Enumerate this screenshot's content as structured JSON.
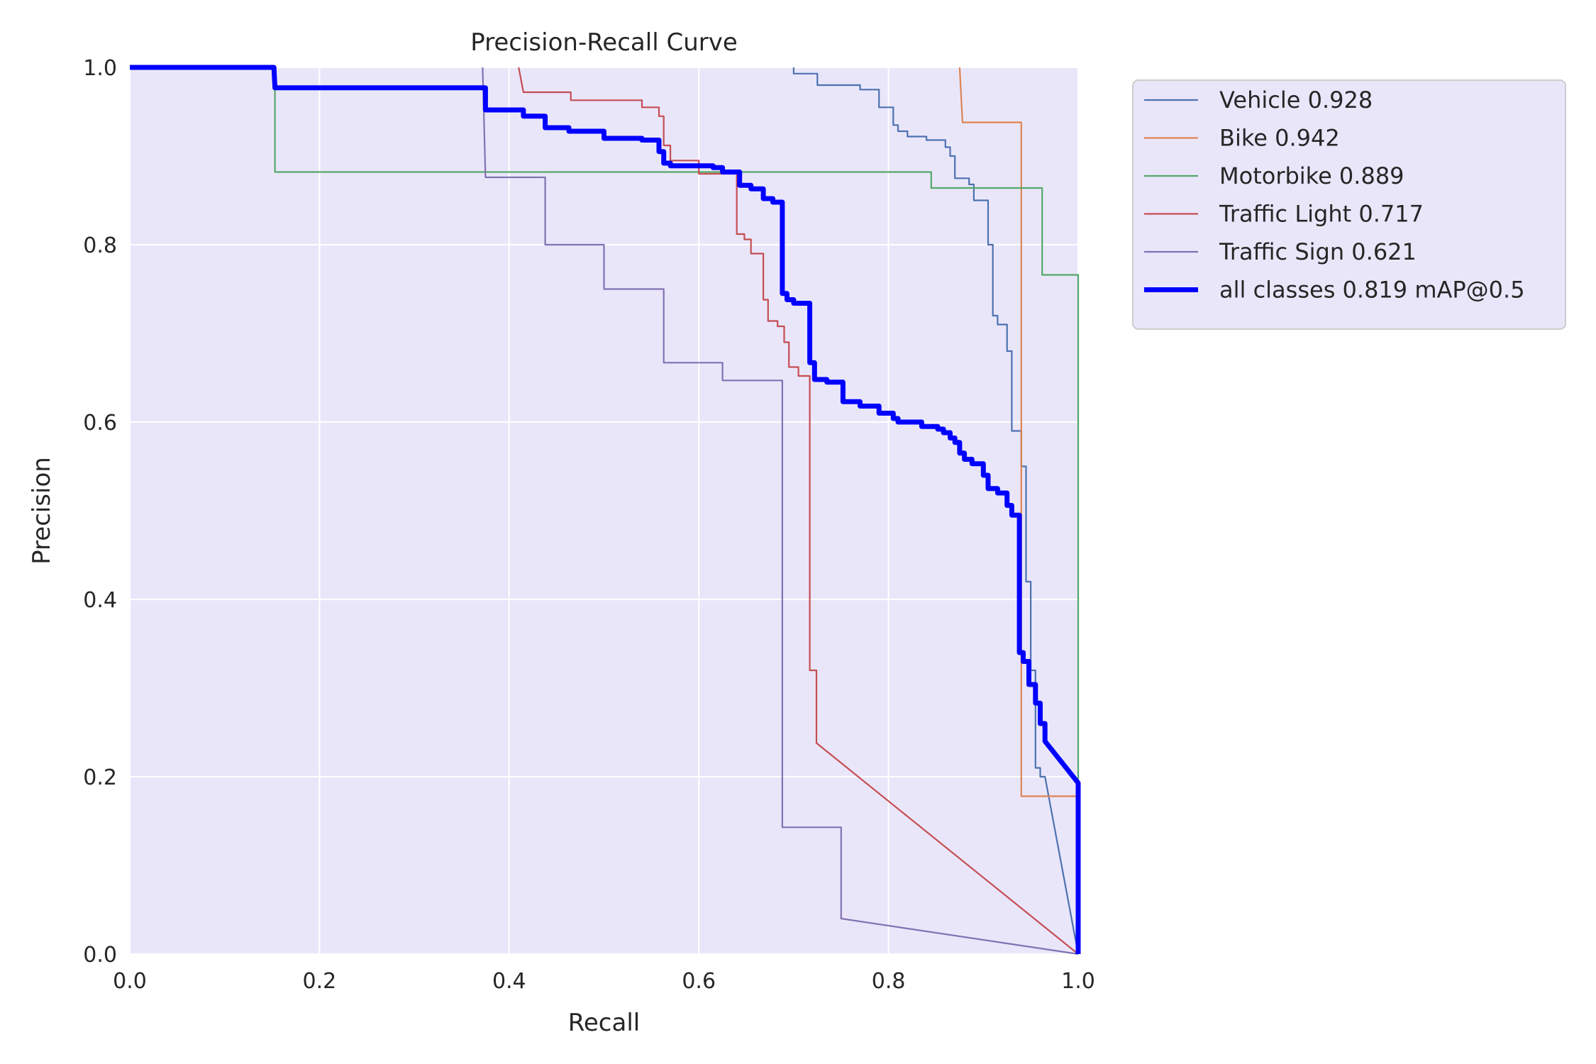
{
  "chart_data": {
    "type": "line",
    "title": "Precision-Recall Curve",
    "xlabel": "Recall",
    "ylabel": "Precision",
    "xlim": [
      0,
      1
    ],
    "ylim": [
      0,
      1
    ],
    "grid": true,
    "legend_position": "outside-top-right",
    "x_ticks": [
      0,
      0.2,
      0.4,
      0.6,
      0.8,
      1.0
    ],
    "y_ticks": [
      0,
      0.2,
      0.4,
      0.6,
      0.8,
      1.0
    ],
    "x_tick_labels": [
      "0.0",
      "0.2",
      "0.4",
      "0.6",
      "0.8",
      "1.0"
    ],
    "y_tick_labels": [
      "0.0",
      "0.2",
      "0.4",
      "0.6",
      "0.8",
      "1.0"
    ],
    "series": [
      {
        "name": "Vehicle 0.928",
        "color": "#4c72b0",
        "points": [
          [
            0.7,
            1.0
          ],
          [
            0.7,
            0.993
          ],
          [
            0.725,
            0.993
          ],
          [
            0.725,
            0.98
          ],
          [
            0.77,
            0.98
          ],
          [
            0.77,
            0.975
          ],
          [
            0.79,
            0.975
          ],
          [
            0.79,
            0.955
          ],
          [
            0.805,
            0.955
          ],
          [
            0.805,
            0.935
          ],
          [
            0.81,
            0.935
          ],
          [
            0.81,
            0.928
          ],
          [
            0.82,
            0.928
          ],
          [
            0.82,
            0.922
          ],
          [
            0.84,
            0.922
          ],
          [
            0.84,
            0.918
          ],
          [
            0.86,
            0.918
          ],
          [
            0.86,
            0.91
          ],
          [
            0.865,
            0.91
          ],
          [
            0.865,
            0.9
          ],
          [
            0.87,
            0.9
          ],
          [
            0.87,
            0.875
          ],
          [
            0.885,
            0.875
          ],
          [
            0.885,
            0.868
          ],
          [
            0.89,
            0.868
          ],
          [
            0.89,
            0.85
          ],
          [
            0.905,
            0.85
          ],
          [
            0.905,
            0.8
          ],
          [
            0.91,
            0.8
          ],
          [
            0.91,
            0.72
          ],
          [
            0.915,
            0.72
          ],
          [
            0.915,
            0.71
          ],
          [
            0.925,
            0.71
          ],
          [
            0.925,
            0.68
          ],
          [
            0.93,
            0.68
          ],
          [
            0.93,
            0.59
          ],
          [
            0.94,
            0.59
          ],
          [
            0.94,
            0.55
          ],
          [
            0.945,
            0.55
          ],
          [
            0.945,
            0.42
          ],
          [
            0.95,
            0.42
          ],
          [
            0.95,
            0.32
          ],
          [
            0.955,
            0.32
          ],
          [
            0.955,
            0.21
          ],
          [
            0.96,
            0.21
          ],
          [
            0.96,
            0.2
          ],
          [
            0.965,
            0.2
          ],
          [
            1.0,
            0.0
          ]
        ]
      },
      {
        "name": "Bike 0.942",
        "color": "#dd8452",
        "points": [
          [
            0.875,
            1.0
          ],
          [
            0.878,
            0.938
          ],
          [
            0.94,
            0.938
          ],
          [
            0.94,
            0.178
          ],
          [
            1.0,
            0.178
          ],
          [
            1.0,
            0.0
          ]
        ]
      },
      {
        "name": "Motorbike 0.889",
        "color": "#55a868",
        "points": [
          [
            0.0,
            1.0
          ],
          [
            0.153,
            1.0
          ],
          [
            0.153,
            0.882
          ],
          [
            0.845,
            0.882
          ],
          [
            0.845,
            0.864
          ],
          [
            0.962,
            0.864
          ],
          [
            0.962,
            0.766
          ],
          [
            1.0,
            0.766
          ],
          [
            1.0,
            0.0
          ]
        ]
      },
      {
        "name": "Traffic Light 0.717",
        "color": "#c44e52",
        "points": [
          [
            0.41,
            1.0
          ],
          [
            0.415,
            0.972
          ],
          [
            0.465,
            0.972
          ],
          [
            0.465,
            0.963
          ],
          [
            0.54,
            0.963
          ],
          [
            0.54,
            0.955
          ],
          [
            0.558,
            0.955
          ],
          [
            0.558,
            0.945
          ],
          [
            0.563,
            0.945
          ],
          [
            0.563,
            0.912
          ],
          [
            0.57,
            0.912
          ],
          [
            0.57,
            0.895
          ],
          [
            0.6,
            0.895
          ],
          [
            0.6,
            0.88
          ],
          [
            0.64,
            0.88
          ],
          [
            0.64,
            0.812
          ],
          [
            0.648,
            0.812
          ],
          [
            0.648,
            0.806
          ],
          [
            0.655,
            0.806
          ],
          [
            0.655,
            0.79
          ],
          [
            0.668,
            0.79
          ],
          [
            0.668,
            0.738
          ],
          [
            0.673,
            0.738
          ],
          [
            0.673,
            0.714
          ],
          [
            0.683,
            0.714
          ],
          [
            0.683,
            0.708
          ],
          [
            0.69,
            0.708
          ],
          [
            0.69,
            0.69
          ],
          [
            0.695,
            0.69
          ],
          [
            0.695,
            0.662
          ],
          [
            0.705,
            0.662
          ],
          [
            0.705,
            0.652
          ],
          [
            0.717,
            0.652
          ],
          [
            0.717,
            0.32
          ],
          [
            0.724,
            0.32
          ],
          [
            0.724,
            0.238
          ],
          [
            1.0,
            0.0
          ]
        ]
      },
      {
        "name": "Traffic Sign 0.621",
        "color": "#8172b3",
        "points": [
          [
            0.372,
            1.0
          ],
          [
            0.375,
            0.876
          ],
          [
            0.438,
            0.876
          ],
          [
            0.438,
            0.8
          ],
          [
            0.5,
            0.8
          ],
          [
            0.5,
            0.75
          ],
          [
            0.563,
            0.75
          ],
          [
            0.563,
            0.667
          ],
          [
            0.625,
            0.667
          ],
          [
            0.625,
            0.647
          ],
          [
            0.688,
            0.647
          ],
          [
            0.688,
            0.143
          ],
          [
            0.75,
            0.143
          ],
          [
            0.75,
            0.04
          ],
          [
            1.0,
            0.0
          ]
        ]
      },
      {
        "name": "all classes 0.819 mAP@0.5",
        "color": "#0000ff",
        "bold": true,
        "points": [
          [
            0.0,
            1.0
          ],
          [
            0.152,
            1.0
          ],
          [
            0.153,
            0.977
          ],
          [
            0.375,
            0.977
          ],
          [
            0.375,
            0.952
          ],
          [
            0.415,
            0.952
          ],
          [
            0.415,
            0.945
          ],
          [
            0.438,
            0.945
          ],
          [
            0.438,
            0.932
          ],
          [
            0.463,
            0.932
          ],
          [
            0.463,
            0.928
          ],
          [
            0.5,
            0.928
          ],
          [
            0.5,
            0.92
          ],
          [
            0.54,
            0.92
          ],
          [
            0.54,
            0.918
          ],
          [
            0.558,
            0.918
          ],
          [
            0.558,
            0.905
          ],
          [
            0.563,
            0.905
          ],
          [
            0.563,
            0.892
          ],
          [
            0.57,
            0.892
          ],
          [
            0.57,
            0.889
          ],
          [
            0.615,
            0.889
          ],
          [
            0.615,
            0.887
          ],
          [
            0.625,
            0.887
          ],
          [
            0.625,
            0.882
          ],
          [
            0.643,
            0.882
          ],
          [
            0.643,
            0.867
          ],
          [
            0.655,
            0.867
          ],
          [
            0.655,
            0.863
          ],
          [
            0.668,
            0.863
          ],
          [
            0.668,
            0.852
          ],
          [
            0.678,
            0.852
          ],
          [
            0.678,
            0.848
          ],
          [
            0.688,
            0.848
          ],
          [
            0.688,
            0.745
          ],
          [
            0.693,
            0.745
          ],
          [
            0.693,
            0.738
          ],
          [
            0.7,
            0.738
          ],
          [
            0.7,
            0.734
          ],
          [
            0.717,
            0.734
          ],
          [
            0.717,
            0.667
          ],
          [
            0.722,
            0.667
          ],
          [
            0.722,
            0.648
          ],
          [
            0.735,
            0.648
          ],
          [
            0.735,
            0.645
          ],
          [
            0.752,
            0.645
          ],
          [
            0.752,
            0.623
          ],
          [
            0.77,
            0.623
          ],
          [
            0.77,
            0.618
          ],
          [
            0.79,
            0.618
          ],
          [
            0.79,
            0.61
          ],
          [
            0.805,
            0.61
          ],
          [
            0.805,
            0.604
          ],
          [
            0.81,
            0.604
          ],
          [
            0.81,
            0.6
          ],
          [
            0.835,
            0.6
          ],
          [
            0.835,
            0.595
          ],
          [
            0.852,
            0.595
          ],
          [
            0.852,
            0.592
          ],
          [
            0.858,
            0.592
          ],
          [
            0.858,
            0.588
          ],
          [
            0.865,
            0.588
          ],
          [
            0.865,
            0.582
          ],
          [
            0.87,
            0.582
          ],
          [
            0.87,
            0.577
          ],
          [
            0.875,
            0.577
          ],
          [
            0.875,
            0.565
          ],
          [
            0.88,
            0.565
          ],
          [
            0.88,
            0.558
          ],
          [
            0.888,
            0.558
          ],
          [
            0.888,
            0.553
          ],
          [
            0.9,
            0.553
          ],
          [
            0.9,
            0.54
          ],
          [
            0.905,
            0.54
          ],
          [
            0.905,
            0.525
          ],
          [
            0.915,
            0.525
          ],
          [
            0.915,
            0.52
          ],
          [
            0.925,
            0.52
          ],
          [
            0.925,
            0.506
          ],
          [
            0.93,
            0.506
          ],
          [
            0.93,
            0.495
          ],
          [
            0.938,
            0.495
          ],
          [
            0.938,
            0.34
          ],
          [
            0.942,
            0.34
          ],
          [
            0.942,
            0.33
          ],
          [
            0.948,
            0.33
          ],
          [
            0.948,
            0.304
          ],
          [
            0.955,
            0.304
          ],
          [
            0.955,
            0.283
          ],
          [
            0.96,
            0.283
          ],
          [
            0.96,
            0.26
          ],
          [
            0.965,
            0.26
          ],
          [
            0.965,
            0.24
          ],
          [
            1.0,
            0.193
          ],
          [
            1.0,
            0.0
          ]
        ]
      }
    ]
  }
}
